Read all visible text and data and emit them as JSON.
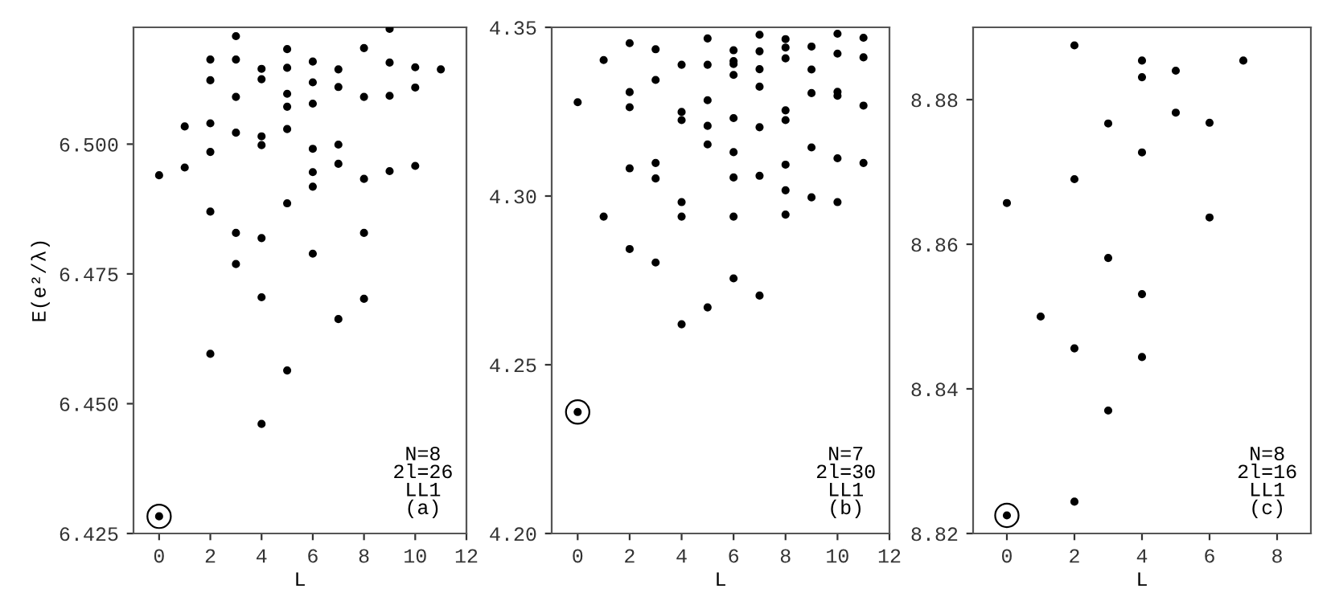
{
  "chart_data": [
    {
      "type": "scatter",
      "ylabel": "E(e²/λ)",
      "xlabel": "L",
      "xlim": [
        -1,
        12
      ],
      "xticks": [
        0,
        2,
        4,
        6,
        8,
        10,
        12
      ],
      "ylim": [
        6.425,
        6.5225
      ],
      "yticks": [
        {
          "value": 6.425,
          "label": "6.425"
        },
        {
          "value": 6.45,
          "label": "6.450"
        },
        {
          "value": 6.475,
          "label": "6.475"
        },
        {
          "value": 6.5,
          "label": "6.500"
        }
      ],
      "grid": false,
      "marker": "circle",
      "annotations": [
        "N=8\n2l=26\nLL1\n(a)"
      ],
      "series": [
        {
          "color": "#000000",
          "x": [
            0,
            1,
            1,
            2,
            2,
            2,
            2,
            2,
            2,
            3,
            3,
            3,
            3,
            3,
            3,
            4,
            4,
            4,
            4,
            4,
            4,
            4,
            5,
            5,
            5,
            5,
            5,
            5,
            5,
            6,
            6,
            6,
            6,
            6,
            6,
            6,
            7,
            7,
            7,
            7,
            7,
            8,
            8,
            8,
            8,
            8,
            9,
            9,
            9,
            9,
            10,
            10,
            10,
            11
          ],
          "values": [
            6.494,
            6.5034,
            6.4955,
            6.5163,
            6.5123,
            6.504,
            6.4985,
            6.487,
            6.4596,
            6.5208,
            6.5163,
            6.5091,
            6.5022,
            6.4829,
            6.4769,
            6.5145,
            6.5125,
            6.5015,
            6.4998,
            6.4819,
            6.4705,
            6.4461,
            6.5183,
            6.5147,
            6.5097,
            6.5072,
            6.5029,
            6.4886,
            6.4564,
            6.5159,
            6.5119,
            6.5078,
            6.4991,
            6.4946,
            6.4918,
            6.4789,
            6.5144,
            6.511,
            6.4999,
            6.4962,
            6.4663,
            6.5185,
            6.5091,
            6.4933,
            6.4829,
            6.4702,
            6.5222,
            6.5157,
            6.5093,
            6.4948,
            6.5148,
            6.5109,
            6.4958,
            6.5144
          ]
        },
        {
          "color": "#000000",
          "marker": "circled",
          "x": [
            0
          ],
          "values": [
            6.4283
          ]
        }
      ]
    },
    {
      "type": "scatter",
      "xlabel": "L",
      "xlim": [
        -1,
        12
      ],
      "xticks": [
        0,
        2,
        4,
        6,
        8,
        10,
        12
      ],
      "ylim": [
        4.2,
        4.35
      ],
      "yticks": [
        {
          "value": 4.2,
          "label": "4.20"
        },
        {
          "value": 4.25,
          "label": "4.25"
        },
        {
          "value": 4.3,
          "label": "4.30"
        },
        {
          "value": 4.35,
          "label": "4.35"
        }
      ],
      "grid": false,
      "marker": "circle",
      "annotations": [
        "N=7\n2l=30\nLL1\n(b)"
      ],
      "series": [
        {
          "color": "#000000",
          "x": [
            0,
            1,
            1,
            2,
            2,
            2,
            2,
            2,
            3,
            3,
            3,
            3,
            3,
            4,
            4,
            4,
            4,
            4,
            4,
            5,
            5,
            5,
            5,
            5,
            5,
            6,
            6,
            6,
            6,
            6,
            6,
            6,
            6,
            6,
            7,
            7,
            7,
            7,
            7,
            7,
            7,
            8,
            8,
            8,
            8,
            8,
            8,
            8,
            8,
            9,
            9,
            9,
            9,
            9,
            10,
            10,
            10,
            10,
            10,
            10,
            11,
            11,
            11,
            11
          ],
          "values": [
            4.3278,
            4.3403,
            4.2939,
            4.3453,
            4.3308,
            4.3263,
            4.3082,
            4.2843,
            4.3435,
            4.3344,
            4.3098,
            4.3052,
            4.2803,
            4.3389,
            4.3249,
            4.3225,
            4.2982,
            4.2939,
            4.262,
            4.3467,
            4.3389,
            4.3284,
            4.3208,
            4.3153,
            4.267,
            4.3432,
            4.34,
            4.3391,
            4.3359,
            4.3231,
            4.313,
            4.3055,
            4.2939,
            4.2756,
            4.3478,
            4.3429,
            4.3376,
            4.3324,
            4.3204,
            4.306,
            4.2705,
            4.3465,
            4.344,
            4.3408,
            4.3254,
            4.3225,
            4.3093,
            4.3017,
            4.2945,
            4.3443,
            4.3375,
            4.3305,
            4.3144,
            4.2996,
            4.3481,
            4.3422,
            4.3309,
            4.3297,
            4.3112,
            4.2982,
            4.3469,
            4.3411,
            4.3268,
            4.3098
          ]
        },
        {
          "color": "#000000",
          "marker": "circled",
          "x": [
            0
          ],
          "values": [
            4.236
          ]
        }
      ]
    },
    {
      "type": "scatter",
      "xlabel": "L",
      "xlim": [
        -1,
        9
      ],
      "xticks": [
        0,
        2,
        4,
        6,
        8
      ],
      "ylim": [
        8.82,
        8.89
      ],
      "yticks": [
        {
          "value": 8.82,
          "label": "8.82"
        },
        {
          "value": 8.84,
          "label": "8.84"
        },
        {
          "value": 8.86,
          "label": "8.86"
        },
        {
          "value": 8.88,
          "label": "8.88"
        }
      ],
      "grid": false,
      "marker": "circle",
      "annotations": [
        "N=8\n2l=16\nLL1\n(c)"
      ],
      "series": [
        {
          "color": "#000000",
          "x": [
            0,
            1,
            2,
            2,
            2,
            2,
            3,
            3,
            3,
            4,
            4,
            4,
            4,
            4,
            5,
            5,
            6,
            6,
            7
          ],
          "values": [
            8.8657,
            8.85,
            8.8875,
            8.869,
            8.8456,
            8.8244,
            8.8767,
            8.8581,
            8.837,
            8.8854,
            8.8831,
            8.8727,
            8.8531,
            8.8444,
            8.884,
            8.8782,
            8.8768,
            8.8637,
            8.8854
          ]
        },
        {
          "color": "#000000",
          "marker": "circled",
          "x": [
            0
          ],
          "values": [
            8.8225
          ]
        }
      ]
    }
  ]
}
